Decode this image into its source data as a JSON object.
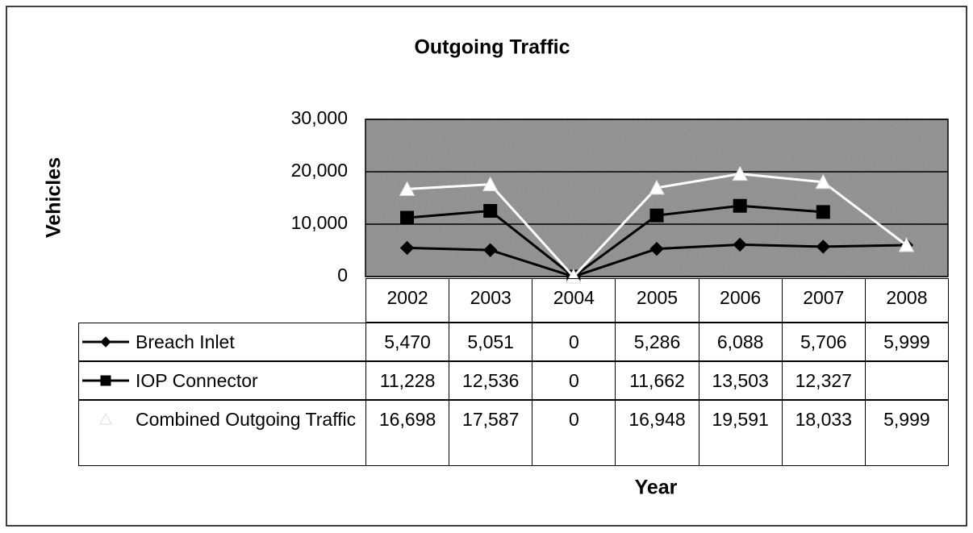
{
  "chart_data": {
    "type": "line",
    "title": "Outgoing Traffic",
    "x_label": "Year",
    "y_label": "Vehicles",
    "categories": [
      "2002",
      "2003",
      "2004",
      "2005",
      "2006",
      "2007",
      "2008"
    ],
    "series": [
      {
        "name": "Breach Inlet",
        "color": "#000000",
        "marker": "diamond",
        "values": [
          5470,
          5051,
          0,
          5286,
          6088,
          5706,
          5999
        ],
        "value_labels": [
          "5,470",
          "5,051",
          "0",
          "5,286",
          "6,088",
          "5,706",
          "5,999"
        ]
      },
      {
        "name": "IOP Connector",
        "color": "#000000",
        "marker": "square",
        "values": [
          11228,
          12536,
          0,
          11662,
          13503,
          12327,
          null
        ],
        "value_labels": [
          "11,228",
          "12,536",
          "0",
          "11,662",
          "13,503",
          "12,327",
          null
        ]
      },
      {
        "name": "Combined Outgoing Traffic",
        "color": "#ffffff",
        "marker": "triangle",
        "values": [
          16698,
          17587,
          0,
          16948,
          19591,
          18033,
          5999
        ],
        "value_labels": [
          "16,698",
          "17,587",
          "0",
          "16,948",
          "19,591",
          "18,033",
          "5,999"
        ]
      }
    ],
    "ylim": [
      0,
      30000
    ],
    "yticks": [
      0,
      {
        "value": 10000,
        "label": "10,000"
      },
      {
        "value": 20000,
        "label": "20,000"
      },
      {
        "value": 30000,
        "label": "30,000"
      }
    ],
    "grid": true,
    "data_table": true
  }
}
